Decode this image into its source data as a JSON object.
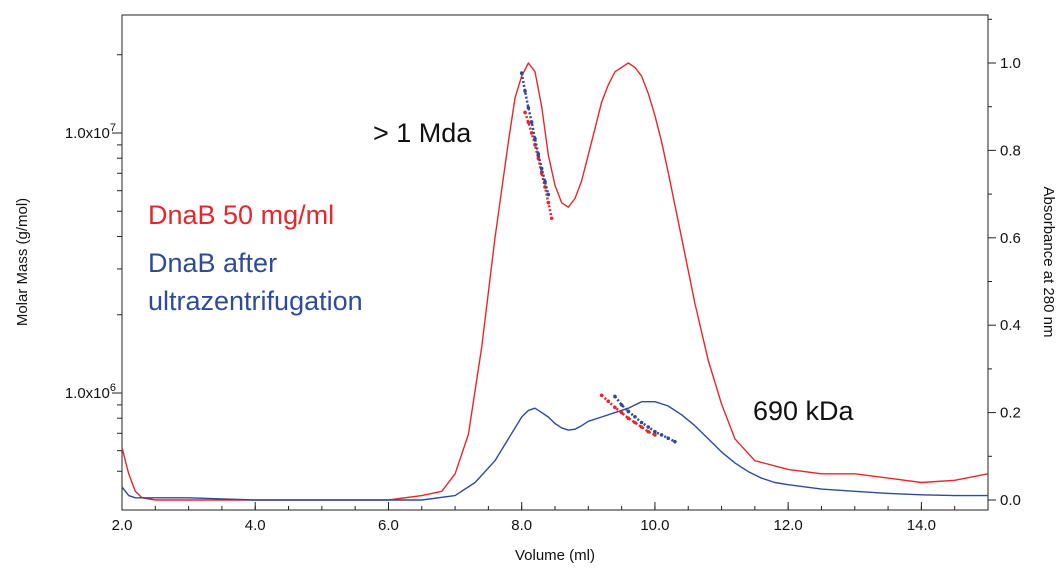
{
  "chart_data": {
    "type": "line",
    "title": "",
    "xlabel": "Volume (ml)",
    "ylabel_left": "Molar Mass (g/mol)",
    "ylabel_right": "Absorbance at 280 nm",
    "x_range": [
      2.0,
      15.0
    ],
    "x_ticks": [
      "2.0",
      "4.0",
      "6.0",
      "8.0",
      "10.0",
      "12.0",
      "14.0"
    ],
    "y_left_scale": "log",
    "y_left_ticks": [
      "1.0x10",
      "1.0x10"
    ],
    "y_left_tick_exponents": [
      "7",
      "6"
    ],
    "y_left_tick_values": [
      10000000,
      1000000
    ],
    "y_right_range": [
      0.0,
      1.1
    ],
    "y_right_ticks": [
      "0.0",
      "0.2",
      "0.4",
      "0.6",
      "0.8",
      "1.0"
    ],
    "grid": false,
    "annotations": {
      "mda": "> 1 Mda",
      "kda": "690 kDa",
      "legend_red": "DnaB 50 mg/ml",
      "legend_blue_line1": "DnaB after",
      "legend_blue_line2": "ultrazentrifugation"
    },
    "colors": {
      "red": "#e8262a",
      "blue": "#2e4b9b"
    },
    "series": [
      {
        "name": "DnaB 50 mg/ml",
        "axis": "right",
        "color": "#e8262a",
        "x": [
          2.0,
          2.1,
          2.2,
          2.3,
          2.5,
          3.0,
          4.0,
          5.0,
          6.0,
          6.5,
          6.8,
          7.0,
          7.2,
          7.4,
          7.6,
          7.8,
          7.9,
          8.0,
          8.1,
          8.2,
          8.3,
          8.4,
          8.5,
          8.6,
          8.7,
          8.8,
          8.9,
          9.0,
          9.1,
          9.2,
          9.3,
          9.4,
          9.5,
          9.6,
          9.7,
          9.8,
          9.9,
          10.0,
          10.1,
          10.2,
          10.4,
          10.6,
          10.8,
          11.0,
          11.2,
          11.5,
          12.0,
          12.5,
          13.0,
          13.5,
          14.0,
          14.5,
          15.0
        ],
        "y": [
          0.12,
          0.06,
          0.02,
          0.005,
          0.0,
          0.0,
          0.0,
          0.0,
          0.0,
          0.01,
          0.02,
          0.06,
          0.15,
          0.35,
          0.6,
          0.82,
          0.92,
          0.97,
          1.0,
          0.98,
          0.9,
          0.79,
          0.72,
          0.68,
          0.67,
          0.69,
          0.73,
          0.79,
          0.85,
          0.91,
          0.95,
          0.98,
          0.99,
          1.0,
          0.99,
          0.97,
          0.93,
          0.88,
          0.82,
          0.75,
          0.6,
          0.45,
          0.32,
          0.22,
          0.14,
          0.09,
          0.07,
          0.06,
          0.06,
          0.05,
          0.04,
          0.045,
          0.06
        ]
      },
      {
        "name": "DnaB after ultrazentrifugation",
        "axis": "right",
        "color": "#2e4b9b",
        "x": [
          2.0,
          2.1,
          2.2,
          2.4,
          3.0,
          4.0,
          5.0,
          6.0,
          6.5,
          7.0,
          7.3,
          7.6,
          7.8,
          8.0,
          8.1,
          8.2,
          8.3,
          8.4,
          8.5,
          8.6,
          8.7,
          8.8,
          8.9,
          9.0,
          9.2,
          9.4,
          9.6,
          9.8,
          10.0,
          10.2,
          10.4,
          10.6,
          10.8,
          11.0,
          11.2,
          11.4,
          11.6,
          11.8,
          12.0,
          12.5,
          13.0,
          13.5,
          14.0,
          14.5,
          15.0
        ],
        "y": [
          0.03,
          0.01,
          0.005,
          0.005,
          0.005,
          0.0,
          0.0,
          0.0,
          0.0,
          0.01,
          0.04,
          0.09,
          0.14,
          0.19,
          0.205,
          0.21,
          0.2,
          0.19,
          0.175,
          0.165,
          0.16,
          0.162,
          0.17,
          0.18,
          0.19,
          0.2,
          0.21,
          0.225,
          0.225,
          0.215,
          0.195,
          0.17,
          0.14,
          0.11,
          0.085,
          0.065,
          0.05,
          0.04,
          0.035,
          0.025,
          0.02,
          0.015,
          0.012,
          0.01,
          0.01
        ]
      },
      {
        "name": "Molar mass DnaB 50 mg/ml (peak 1)",
        "axis": "left",
        "style": "dotted",
        "color": "#e8262a",
        "x": [
          8.05,
          8.1,
          8.15,
          8.2,
          8.25,
          8.3,
          8.35,
          8.4,
          8.45
        ],
        "y": [
          12000000,
          11000000,
          10000000,
          9000000,
          8000000,
          7000000,
          6200000,
          5400000,
          4700000
        ]
      },
      {
        "name": "Molar mass after ultracentrifugation (peak 1)",
        "axis": "left",
        "style": "dotted",
        "color": "#2e4b9b",
        "x": [
          8.0,
          8.05,
          8.1,
          8.15,
          8.2,
          8.25,
          8.3,
          8.35,
          8.4
        ],
        "y": [
          17000000,
          14500000,
          12500000,
          11000000,
          9500000,
          8300000,
          7300000,
          6500000,
          5800000
        ]
      },
      {
        "name": "Molar mass DnaB 50 mg/ml (peak 2)",
        "axis": "left",
        "style": "dotted",
        "color": "#e8262a",
        "x": [
          9.2,
          9.3,
          9.4,
          9.5,
          9.6,
          9.7,
          9.8,
          9.9,
          10.0
        ],
        "y": [
          980000,
          930000,
          880000,
          840000,
          800000,
          770000,
          740000,
          710000,
          690000
        ]
      },
      {
        "name": "Molar mass after ultracentrifugation (peak 2)",
        "axis": "left",
        "style": "dotted",
        "color": "#2e4b9b",
        "x": [
          9.4,
          9.5,
          9.6,
          9.7,
          9.8,
          9.9,
          10.0,
          10.1,
          10.2,
          10.3
        ],
        "y": [
          970000,
          900000,
          850000,
          810000,
          770000,
          740000,
          710000,
          690000,
          670000,
          650000
        ]
      }
    ]
  }
}
